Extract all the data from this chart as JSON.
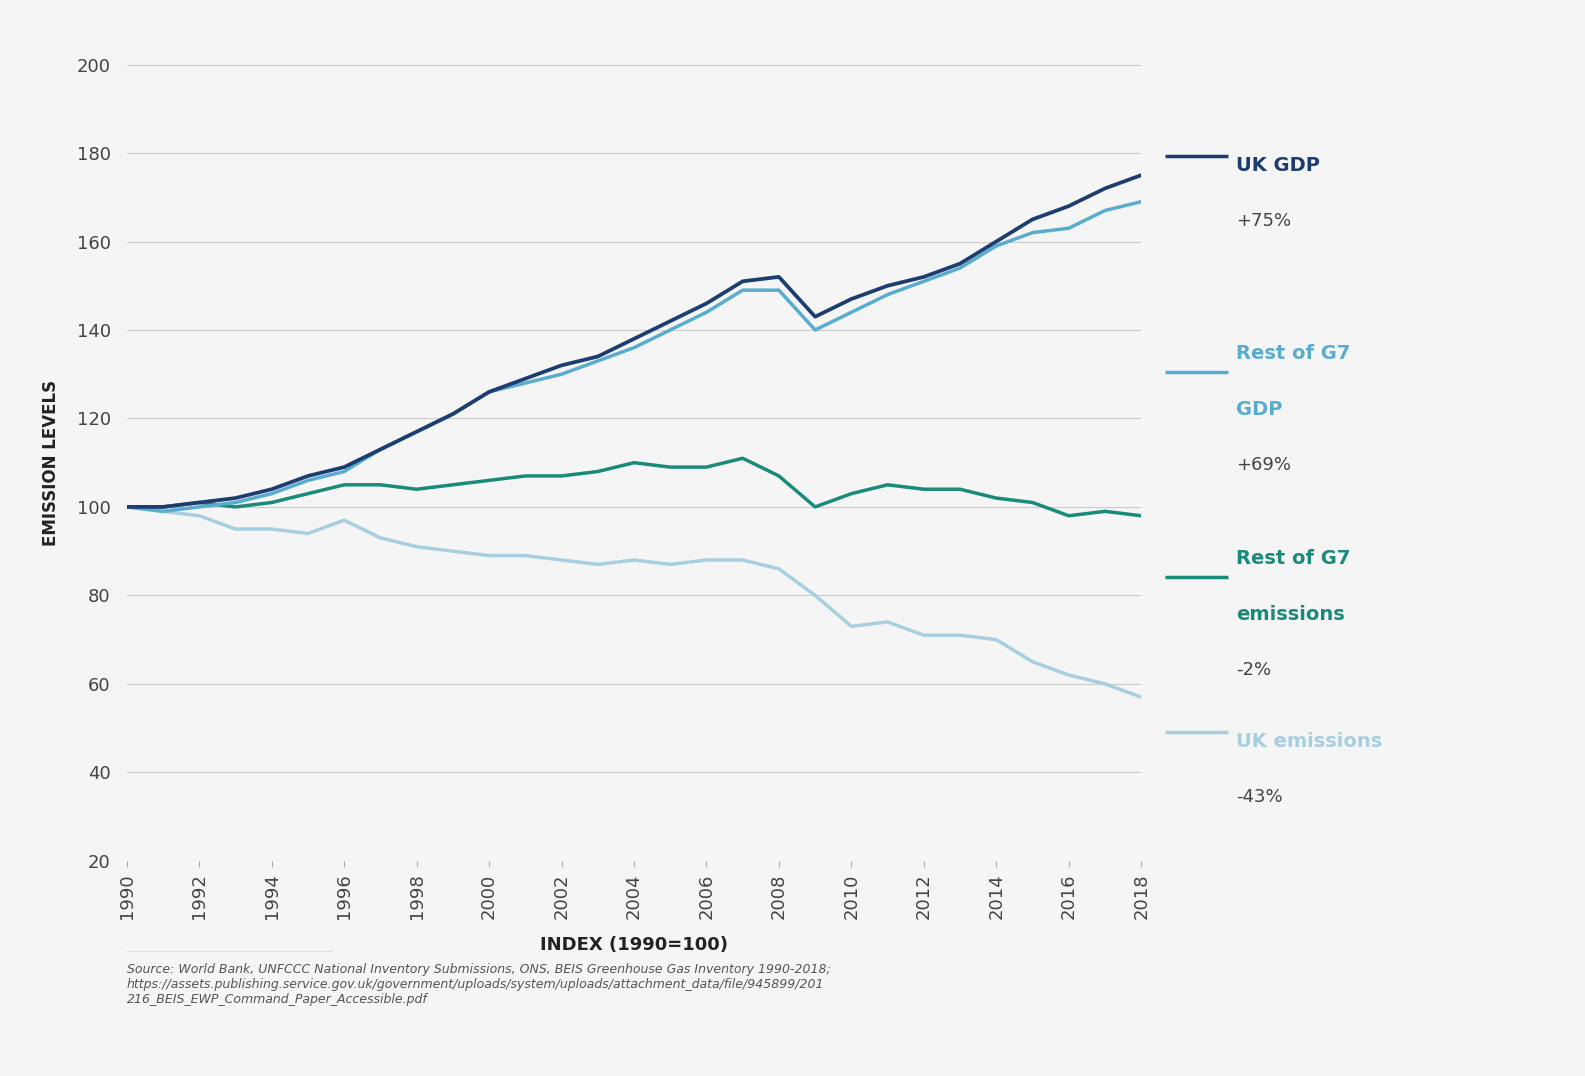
{
  "years": [
    1990,
    1991,
    1992,
    1993,
    1994,
    1995,
    1996,
    1997,
    1998,
    1999,
    2000,
    2001,
    2002,
    2003,
    2004,
    2005,
    2006,
    2007,
    2008,
    2009,
    2010,
    2011,
    2012,
    2013,
    2014,
    2015,
    2016,
    2017,
    2018
  ],
  "uk_gdp": [
    100,
    100,
    101,
    102,
    104,
    107,
    109,
    113,
    117,
    121,
    126,
    129,
    132,
    134,
    138,
    142,
    146,
    151,
    152,
    143,
    147,
    150,
    152,
    155,
    160,
    165,
    168,
    172,
    175
  ],
  "rest_g7_gdp": [
    100,
    99,
    100,
    101,
    103,
    106,
    108,
    113,
    117,
    121,
    126,
    128,
    130,
    133,
    136,
    140,
    144,
    149,
    149,
    140,
    144,
    148,
    151,
    154,
    159,
    162,
    163,
    167,
    169
  ],
  "rest_g7_emiss": [
    100,
    100,
    101,
    100,
    101,
    103,
    105,
    105,
    104,
    105,
    106,
    107,
    107,
    108,
    110,
    109,
    109,
    111,
    107,
    100,
    103,
    105,
    104,
    104,
    102,
    101,
    98,
    99,
    98
  ],
  "uk_emiss": [
    100,
    99,
    98,
    95,
    95,
    94,
    97,
    93,
    91,
    90,
    89,
    89,
    88,
    87,
    88,
    87,
    88,
    88,
    86,
    80,
    73,
    74,
    71,
    71,
    70,
    65,
    62,
    60,
    57
  ],
  "uk_gdp_color": "#1b3d6f",
  "rest_g7_gdp_color": "#5aaccf",
  "rest_g7_emiss_color": "#1a8a7a",
  "uk_emiss_color": "#a8cfe0",
  "background_color": "#f5f5f5",
  "grid_color": "#cccccc",
  "ylabel": "EMISSION LEVELS",
  "xlabel": "INDEX (1990=100)",
  "ylim_min": 20,
  "ylim_max": 200,
  "yticks": [
    20,
    40,
    60,
    80,
    100,
    120,
    140,
    160,
    180,
    200
  ],
  "line_width": 2.3,
  "source_text": "Source: World Bank, UNFCCC National Inventory Submissions, ONS, BEIS Greenhouse Gas Inventory 1990-2018;\nhttps://assets.publishing.service.gov.uk/government/uploads/system/uploads/attachment_data/file/945899/201\n216_BEIS_EWP_Command_Paper_Accessible.pdf"
}
